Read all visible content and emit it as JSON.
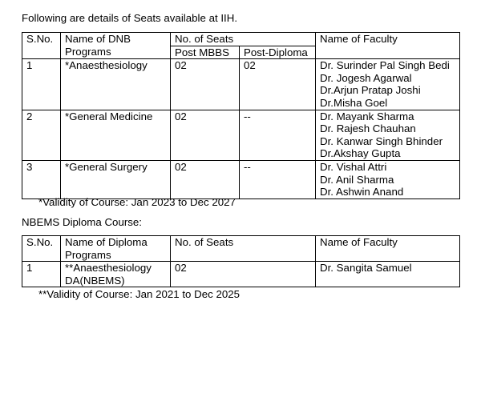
{
  "intro": "Following are details of Seats available at IIH.",
  "dnb": {
    "headers": {
      "sno": "S.No.",
      "program": [
        "Name of DNB",
        "Programs"
      ],
      "seats": "No. of Seats",
      "post_mbbs": "Post MBBS",
      "post_diploma": "Post-Diploma",
      "faculty": "Name of Faculty"
    },
    "rows": [
      {
        "sno": "1",
        "program": "*Anaesthesiology",
        "post_mbbs": "02",
        "post_diploma": "02",
        "faculty": [
          "Dr. Surinder Pal Singh Bedi",
          "Dr. Jogesh Agarwal",
          "Dr.Arjun Pratap Joshi",
          "Dr.Misha Goel"
        ]
      },
      {
        "sno": "2",
        "program": "*General Medicine",
        "post_mbbs": "02",
        "post_diploma": "--",
        "faculty": [
          "Dr. Mayank Sharma",
          "Dr. Rajesh Chauhan",
          "Dr. Kanwar Singh Bhinder",
          "Dr.Akshay Gupta"
        ]
      },
      {
        "sno": "3",
        "program": "*General Surgery",
        "post_mbbs": "02",
        "post_diploma": "--",
        "faculty": [
          "Dr. Vishal Attri",
          "Dr. Anil Sharma",
          "Dr. Ashwin Anand"
        ]
      }
    ],
    "validity": "*Validity of Course: Jan 2023 to Dec 2027"
  },
  "diploma_heading": "NBEMS Diploma Course:",
  "diploma": {
    "headers": {
      "sno": "S.No.",
      "program": [
        "Name of Diploma",
        "Programs"
      ],
      "seats": "No. of Seats",
      "faculty": "Name of Faculty"
    },
    "rows": [
      {
        "sno": "1",
        "program": [
          "**Anaesthesiology",
          "DA(NBEMS)"
        ],
        "seats": "02",
        "faculty": "Dr. Sangita Samuel"
      }
    ],
    "validity": "**Validity of Course: Jan 2021 to Dec 2025"
  }
}
